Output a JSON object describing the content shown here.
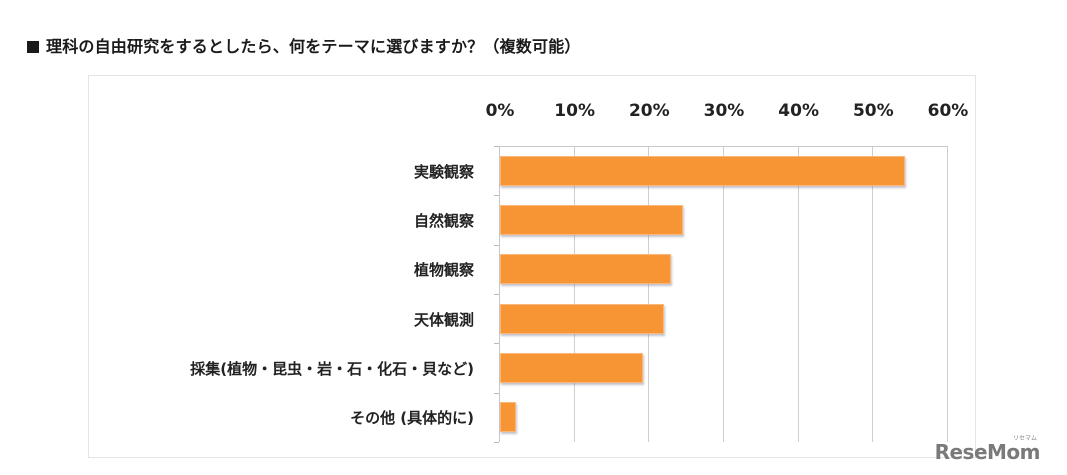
{
  "title": "理科の自由研究をするとしたら、何をテーマに選びますか？（複数可能）",
  "watermark": {
    "text": "ReseMom",
    "ruby": "リセマム"
  },
  "colors": {
    "bar": "#F79433",
    "grid": "#CFCFCF",
    "text": "#1A1A1A"
  },
  "chart_data": {
    "type": "bar",
    "orientation": "horizontal",
    "title": "理科の自由研究をするとしたら、何をテーマに選びますか？（複数可能）",
    "xlabel": "",
    "ylabel": "",
    "xlim": [
      0,
      60
    ],
    "x_ticks": [
      "0%",
      "10%",
      "20%",
      "30%",
      "40%",
      "50%",
      "60%"
    ],
    "x_axis_position": "top",
    "grid": true,
    "legend": null,
    "categories": [
      "実験観察",
      "自然観察",
      "植物観察",
      "天体観測",
      "採集(植物・昆虫・岩・石・化石・貝など)",
      "その他 (具体的に)"
    ],
    "values": [
      54.3,
      24.5,
      22.9,
      21.9,
      19.1,
      2.1
    ],
    "unit": "%"
  }
}
